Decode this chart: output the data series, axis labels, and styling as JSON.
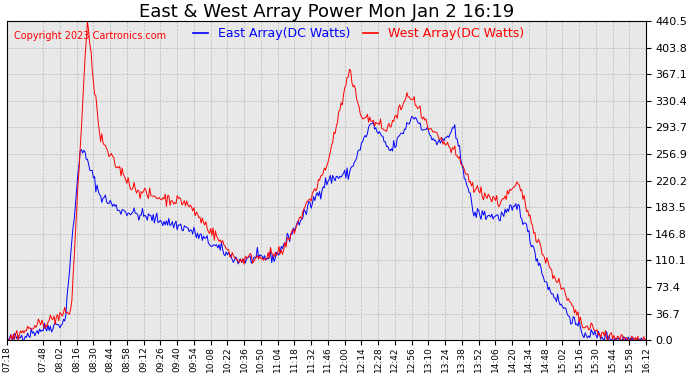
{
  "title": "East & West Array Power Mon Jan 2 16:19",
  "legend_east": "East Array(DC Watts)",
  "legend_west": "West Array(DC Watts)",
  "copyright": "Copyright 2023 Cartronics.com",
  "east_color": "blue",
  "west_color": "red",
  "background_color": "#ffffff",
  "plot_bg_color": "#e8e8e8",
  "grid_color": "#bbbbbb",
  "ylim": [
    0.0,
    440.5
  ],
  "yticks": [
    0.0,
    36.7,
    73.4,
    110.1,
    146.8,
    183.5,
    220.2,
    256.9,
    293.7,
    330.4,
    367.1,
    403.8,
    440.5
  ],
  "xtick_labels": [
    "07:18",
    "07:48",
    "08:02",
    "08:16",
    "08:30",
    "08:44",
    "08:58",
    "09:12",
    "09:26",
    "09:40",
    "09:54",
    "10:08",
    "10:22",
    "10:36",
    "10:50",
    "11:04",
    "11:18",
    "11:32",
    "11:46",
    "12:00",
    "12:14",
    "12:28",
    "12:42",
    "12:56",
    "13:10",
    "13:24",
    "13:38",
    "13:52",
    "14:06",
    "14:20",
    "14:34",
    "14:48",
    "15:02",
    "15:16",
    "15:30",
    "15:44",
    "15:58",
    "16:12"
  ],
  "title_fontsize": 13,
  "legend_fontsize": 9,
  "tick_fontsize": 8,
  "copyright_fontsize": 7
}
